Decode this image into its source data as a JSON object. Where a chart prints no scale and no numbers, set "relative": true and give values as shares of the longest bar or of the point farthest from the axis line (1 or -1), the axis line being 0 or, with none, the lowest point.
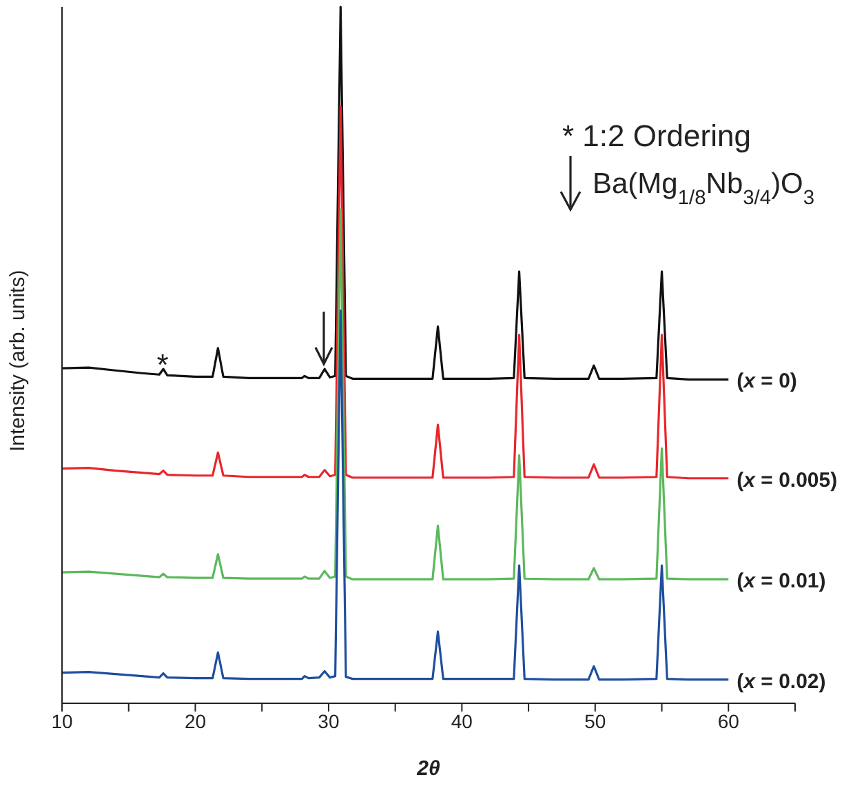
{
  "chart_data": {
    "type": "line",
    "relative": true,
    "xlabel": "2θ",
    "ylabel": "Intensity (arb. units)",
    "xlim": [
      10,
      65
    ],
    "xticks": [
      10,
      {
        "value": 15,
        "label": null
      },
      20,
      {
        "value": 25,
        "label": null
      },
      30,
      {
        "value": 35,
        "label": null
      },
      40,
      {
        "value": 45,
        "label": null
      },
      50,
      {
        "value": 55,
        "label": null
      },
      60,
      {
        "value": 65,
        "label": null
      }
    ],
    "x": [
      10,
      12,
      14,
      16,
      17.3,
      17.6,
      17.9,
      20,
      21.3,
      21.7,
      22.1,
      24,
      26,
      28,
      28.2,
      28.5,
      29.3,
      29.7,
      30.1,
      30.5,
      30.9,
      31.3,
      31.8,
      34,
      36,
      37.8,
      38.2,
      38.6,
      40,
      42,
      43.9,
      44.3,
      44.7,
      47,
      49.5,
      49.9,
      50.3,
      52,
      54.6,
      55,
      55.4,
      57,
      60
    ],
    "series": [
      {
        "name": "(x = 0)",
        "color": "#111111",
        "values": [
          0.481,
          0.482,
          0.478,
          0.474,
          0.472,
          0.48,
          0.471,
          0.469,
          0.469,
          0.51,
          0.469,
          0.467,
          0.467,
          0.467,
          0.47,
          0.467,
          0.467,
          0.48,
          0.468,
          0.47,
          1.0,
          0.47,
          0.466,
          0.466,
          0.466,
          0.466,
          0.541,
          0.466,
          0.466,
          0.466,
          0.467,
          0.62,
          0.467,
          0.466,
          0.466,
          0.485,
          0.466,
          0.466,
          0.467,
          0.62,
          0.467,
          0.465,
          0.465
        ]
      },
      {
        "name": "(x = 0.005)",
        "color": "#e8262b",
        "values": [
          0.337,
          0.338,
          0.334,
          0.331,
          0.329,
          0.334,
          0.328,
          0.327,
          0.327,
          0.36,
          0.327,
          0.325,
          0.325,
          0.325,
          0.328,
          0.325,
          0.325,
          0.335,
          0.326,
          0.328,
          0.857,
          0.328,
          0.324,
          0.324,
          0.324,
          0.324,
          0.4,
          0.324,
          0.324,
          0.324,
          0.325,
          0.529,
          0.325,
          0.324,
          0.324,
          0.343,
          0.324,
          0.324,
          0.325,
          0.529,
          0.325,
          0.323,
          0.323
        ]
      },
      {
        "name": "(x = 0.01)",
        "color": "#5cb85c",
        "values": [
          0.188,
          0.189,
          0.186,
          0.183,
          0.181,
          0.186,
          0.181,
          0.18,
          0.18,
          0.214,
          0.18,
          0.179,
          0.179,
          0.179,
          0.182,
          0.179,
          0.179,
          0.19,
          0.18,
          0.182,
          0.709,
          0.182,
          0.178,
          0.178,
          0.178,
          0.178,
          0.255,
          0.178,
          0.178,
          0.178,
          0.179,
          0.356,
          0.179,
          0.178,
          0.178,
          0.194,
          0.178,
          0.178,
          0.179,
          0.366,
          0.179,
          0.178,
          0.178
        ]
      },
      {
        "name": "(x = 0.02)",
        "color": "#1f4e9e",
        "values": [
          0.044,
          0.045,
          0.042,
          0.039,
          0.037,
          0.043,
          0.037,
          0.036,
          0.036,
          0.073,
          0.036,
          0.035,
          0.035,
          0.035,
          0.039,
          0.036,
          0.037,
          0.046,
          0.037,
          0.039,
          0.564,
          0.038,
          0.035,
          0.035,
          0.035,
          0.035,
          0.103,
          0.035,
          0.035,
          0.035,
          0.035,
          0.198,
          0.035,
          0.034,
          0.034,
          0.053,
          0.034,
          0.034,
          0.035,
          0.198,
          0.035,
          0.034,
          0.034
        ]
      }
    ],
    "annotations": [
      "*",
      "* 1:2 Ordering",
      "Ba(Mg$_{1/8}$Nb$_{3/4}$)O$_{3}$"
    ],
    "legend": false,
    "grid": false,
    "marker": "none",
    "line_style": "solid"
  }
}
